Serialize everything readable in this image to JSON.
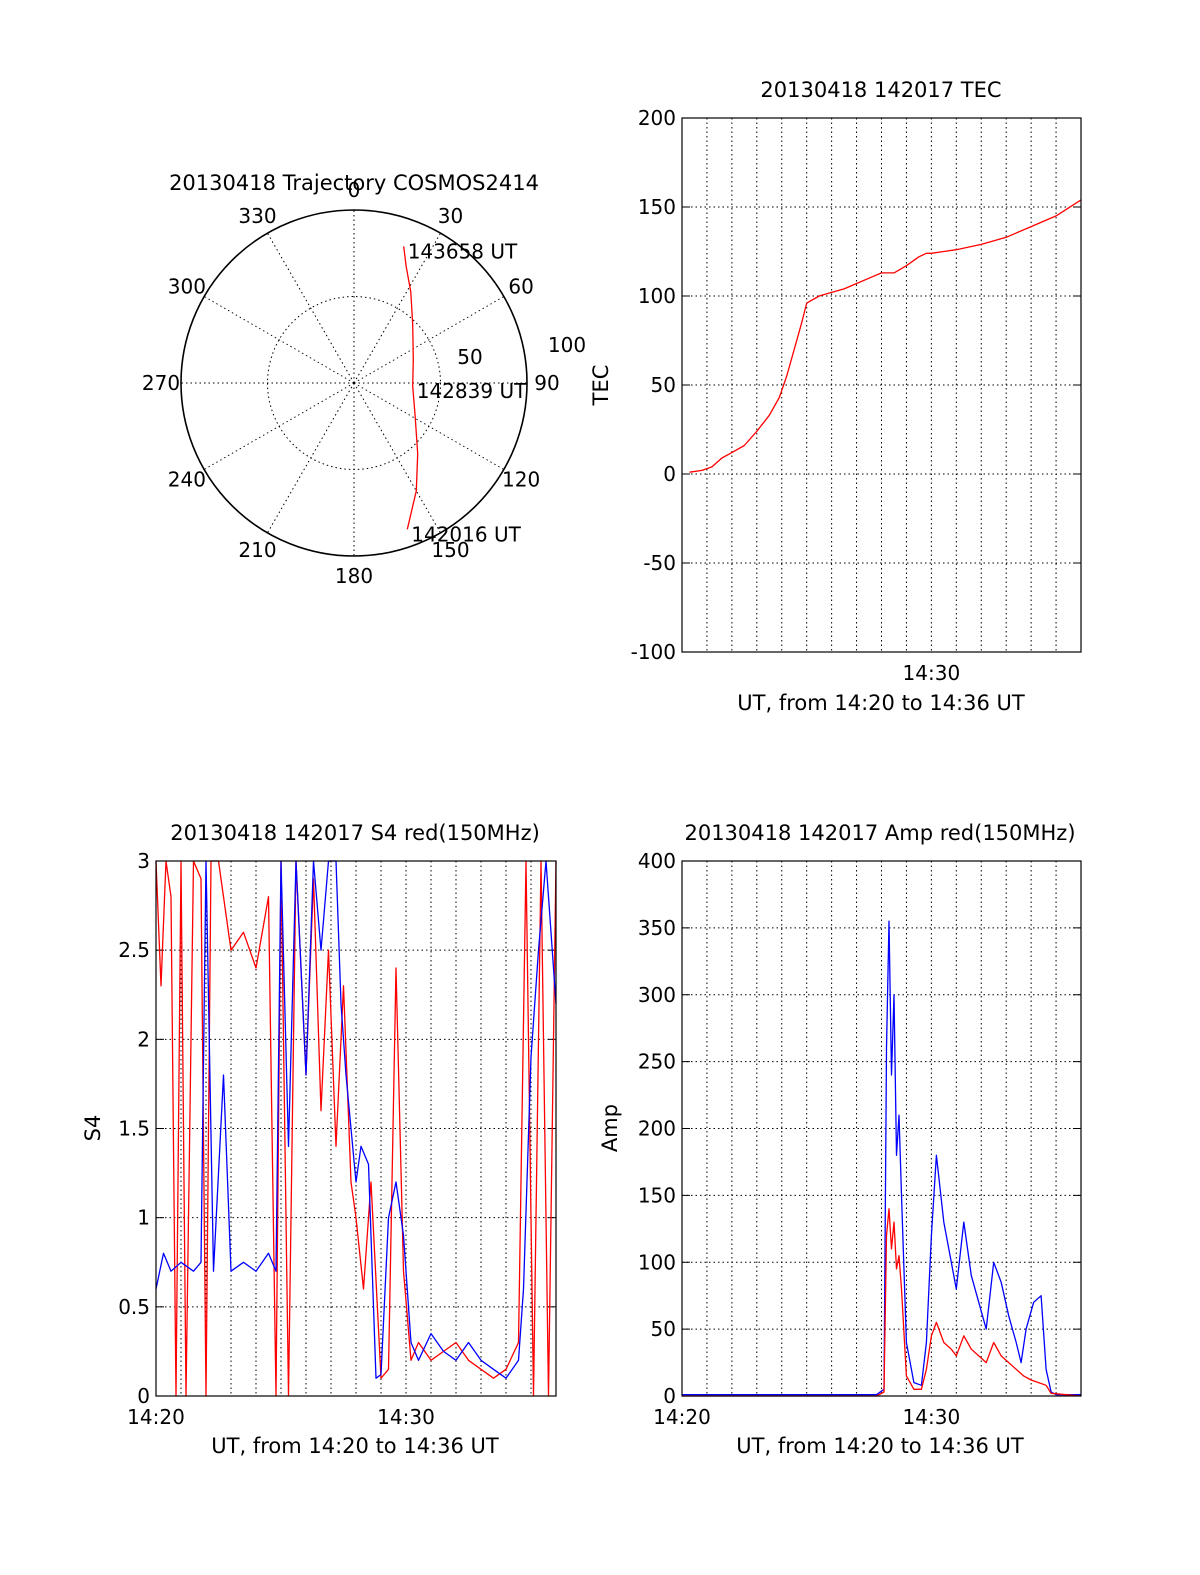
{
  "chart_data": [
    {
      "type": "polar-trajectory",
      "title": "20130418 Trajectory COSMOS2414",
      "angle_labels": [
        "0",
        "30",
        "60",
        "90",
        "120",
        "150",
        "180",
        "210",
        "240",
        "270",
        "300",
        "330"
      ],
      "radius_labels": [
        "50",
        "100"
      ],
      "rlim": [
        0,
        100
      ],
      "grid": true,
      "series": [
        {
          "color": "#ff0000",
          "points": [
            {
              "azimuth": 20,
              "elevation_offset": 84
            },
            {
              "azimuth": 24,
              "elevation_offset": 74
            },
            {
              "azimuth": 32,
              "elevation_offset": 62
            },
            {
              "azimuth": 45,
              "elevation_offset": 48
            },
            {
              "azimuth": 68,
              "elevation_offset": 37
            },
            {
              "azimuth": 93,
              "elevation_offset": 34
            },
            {
              "azimuth": 118,
              "elevation_offset": 40
            },
            {
              "azimuth": 138,
              "elevation_offset": 55
            },
            {
              "azimuth": 150,
              "elevation_offset": 72
            },
            {
              "azimuth": 160,
              "elevation_offset": 90
            }
          ]
        }
      ],
      "annotations": [
        {
          "text": "143658 UT",
          "azimuth": 20,
          "elevation_offset": 84
        },
        {
          "text": "142839 UT",
          "azimuth": 93,
          "elevation_offset": 34
        },
        {
          "text": "142016 UT",
          "azimuth": 160,
          "elevation_offset": 90
        }
      ]
    },
    {
      "type": "line",
      "title": "20130418 142017 TEC",
      "xlabel": "UT, from 14:20 to 14:36 UT",
      "ylabel": "TEC",
      "x_tick_labels": [
        "14:30"
      ],
      "y_tick_labels": [
        "200",
        "150",
        "100",
        "50",
        "0",
        "-50",
        "-100"
      ],
      "ylim": [
        -100,
        200
      ],
      "grid": true,
      "series": [
        {
          "color": "#ff0000",
          "x": [
            0.3,
            0.8,
            1.2,
            1.6,
            2.0,
            2.5,
            3.0,
            3.5,
            3.9,
            4.2,
            4.5,
            4.8,
            5.0,
            5.5,
            6.0,
            6.5,
            7.0,
            7.5,
            8.0,
            8.5,
            9.0,
            9.5,
            9.8,
            10.0,
            10.5,
            11.0,
            12.0,
            13.0,
            14.0,
            15.0,
            16.0
          ],
          "values": [
            1,
            2,
            4,
            9,
            12,
            16,
            24,
            33,
            43,
            55,
            70,
            85,
            96,
            100,
            102,
            104,
            107,
            110,
            113,
            113,
            117,
            122,
            124,
            124,
            125,
            126,
            129,
            133,
            139,
            145,
            154
          ]
        }
      ]
    },
    {
      "type": "line",
      "title": "20130418 142017 S4 red(150MHz)",
      "xlabel": "UT, from 14:20 to 14:36 UT",
      "ylabel": "S4",
      "x_tick_labels": [
        "14:20",
        "14:30"
      ],
      "y_tick_labels": [
        "3",
        "2.5",
        "2",
        "1.5",
        "1",
        "0.5",
        "0"
      ],
      "ylim": [
        0,
        3
      ],
      "grid": true,
      "series": [
        {
          "color": "#ff0000",
          "x": [
            0.0,
            0.2,
            0.4,
            0.6,
            0.8,
            1.0,
            1.2,
            1.5,
            1.8,
            2.0,
            2.2,
            2.5,
            3.0,
            3.5,
            4.0,
            4.5,
            4.8,
            5.0,
            5.3,
            5.6,
            6.0,
            6.3,
            6.6,
            6.9,
            7.2,
            7.5,
            7.8,
            8.0,
            8.3,
            8.6,
            9.0,
            9.3,
            9.6,
            9.9,
            10.2,
            10.5,
            11.0,
            11.5,
            12.0,
            12.5,
            13.0,
            13.5,
            14.0,
            14.5,
            14.8,
            15.1,
            15.4,
            15.7,
            16.0
          ],
          "values": [
            3.0,
            2.3,
            3.0,
            2.8,
            0.0,
            3.0,
            0.0,
            3.0,
            2.9,
            0.0,
            3.0,
            3.0,
            2.5,
            2.6,
            2.4,
            2.8,
            0.0,
            3.0,
            0.0,
            3.0,
            1.8,
            2.9,
            1.6,
            2.5,
            1.4,
            2.3,
            1.2,
            1.0,
            0.6,
            1.2,
            0.1,
            0.15,
            2.4,
            0.7,
            0.2,
            0.3,
            0.2,
            0.25,
            0.3,
            0.2,
            0.15,
            0.1,
            0.15,
            0.3,
            3.0,
            0.0,
            3.0,
            0.0,
            3.0
          ]
        },
        {
          "color": "#0000ff",
          "x": [
            0.0,
            0.3,
            0.6,
            1.0,
            1.5,
            1.8,
            2.0,
            2.3,
            2.7,
            3.0,
            3.5,
            4.0,
            4.5,
            4.8,
            5.0,
            5.3,
            5.6,
            6.0,
            6.3,
            6.6,
            6.9,
            7.2,
            7.4,
            7.6,
            7.8,
            8.0,
            8.2,
            8.5,
            8.8,
            9.0,
            9.3,
            9.6,
            9.9,
            10.2,
            10.5,
            11.0,
            11.5,
            12.0,
            12.5,
            13.0,
            13.5,
            14.0,
            14.5,
            14.7,
            15.0,
            15.3,
            15.6,
            16.0
          ],
          "values": [
            0.6,
            0.8,
            0.7,
            0.75,
            0.7,
            0.75,
            3.0,
            0.7,
            1.8,
            0.7,
            0.75,
            0.7,
            0.8,
            0.7,
            3.0,
            1.4,
            3.0,
            1.8,
            3.0,
            2.5,
            3.0,
            3.0,
            2.2,
            1.8,
            1.5,
            1.2,
            1.4,
            1.3,
            0.1,
            0.12,
            1.0,
            1.2,
            0.9,
            0.3,
            0.2,
            0.35,
            0.25,
            0.2,
            0.3,
            0.2,
            0.15,
            0.1,
            0.2,
            0.6,
            1.9,
            2.5,
            3.0,
            2.2
          ]
        }
      ]
    },
    {
      "type": "line",
      "title": "20130418 142017 Amp red(150MHz)",
      "xlabel": "UT, from 14:20 to 14:36 UT",
      "ylabel": "Amp",
      "x_tick_labels": [
        "14:20",
        "14:30"
      ],
      "y_tick_labels": [
        "400",
        "350",
        "300",
        "250",
        "200",
        "150",
        "100",
        "50",
        "0"
      ],
      "ylim": [
        0,
        400
      ],
      "grid": true,
      "series": [
        {
          "color": "#0000ff",
          "x": [
            0.0,
            4.0,
            7.8,
            8.1,
            8.2,
            8.3,
            8.4,
            8.5,
            8.6,
            8.7,
            8.8,
            9.0,
            9.3,
            9.6,
            9.8,
            10.0,
            10.2,
            10.5,
            10.8,
            11.0,
            11.3,
            11.6,
            11.9,
            12.2,
            12.5,
            12.8,
            13.1,
            13.4,
            13.6,
            13.8,
            14.1,
            14.4,
            14.6,
            14.8,
            15.0,
            16.0
          ],
          "values": [
            1,
            1,
            1,
            5,
            260,
            355,
            240,
            300,
            180,
            210,
            150,
            40,
            10,
            8,
            40,
            120,
            180,
            130,
            100,
            80,
            130,
            90,
            70,
            50,
            100,
            85,
            60,
            40,
            25,
            50,
            70,
            75,
            20,
            3,
            1,
            1
          ]
        },
        {
          "color": "#ff0000",
          "x": [
            0.0,
            4.0,
            7.8,
            8.1,
            8.2,
            8.3,
            8.4,
            8.5,
            8.6,
            8.7,
            8.8,
            9.0,
            9.3,
            9.6,
            9.8,
            10.0,
            10.2,
            10.5,
            10.8,
            11.0,
            11.3,
            11.6,
            11.9,
            12.2,
            12.5,
            12.8,
            13.1,
            13.4,
            13.7,
            14.0,
            14.3,
            14.6,
            14.8,
            16.0
          ],
          "values": [
            0,
            0,
            0,
            3,
            120,
            140,
            110,
            130,
            95,
            105,
            80,
            15,
            5,
            5,
            20,
            45,
            55,
            40,
            35,
            30,
            45,
            35,
            30,
            25,
            40,
            30,
            25,
            20,
            15,
            12,
            10,
            8,
            2,
            0
          ]
        }
      ]
    }
  ]
}
